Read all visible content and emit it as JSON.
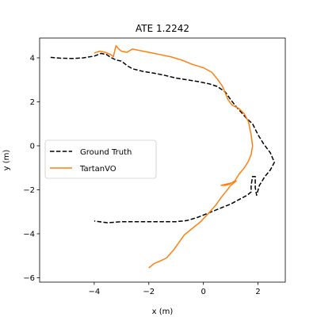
{
  "chart_data": {
    "type": "line",
    "title": "ATE 1.2242",
    "xlabel": "x (m)",
    "ylabel": "y (m)",
    "xlim": [
      -6.0,
      3.0
    ],
    "ylim": [
      -6.2,
      4.9
    ],
    "xticks": [
      -4,
      -2,
      0,
      2
    ],
    "yticks": [
      -6,
      -4,
      -2,
      0,
      2,
      4
    ],
    "xtick_labels": [
      "−4",
      "−2",
      "0",
      "2"
    ],
    "ytick_labels": [
      "−6",
      "−4",
      "−2",
      "0",
      "2",
      "4"
    ],
    "grid": false,
    "legend_position": "center-left",
    "series": [
      {
        "name": "Ground Truth",
        "style": "dashed",
        "color": "#000000",
        "points": [
          [
            -5.6,
            4.02
          ],
          [
            -5.2,
            3.98
          ],
          [
            -4.8,
            3.97
          ],
          [
            -4.4,
            4.0
          ],
          [
            -4.0,
            4.08
          ],
          [
            -3.75,
            4.2
          ],
          [
            -3.55,
            4.15
          ],
          [
            -3.4,
            4.02
          ],
          [
            -3.2,
            3.9
          ],
          [
            -3.0,
            3.85
          ],
          [
            -2.8,
            3.65
          ],
          [
            -2.6,
            3.5
          ],
          [
            -2.2,
            3.38
          ],
          [
            -1.8,
            3.3
          ],
          [
            -1.4,
            3.2
          ],
          [
            -1.0,
            3.08
          ],
          [
            -0.6,
            3.0
          ],
          [
            -0.2,
            2.92
          ],
          [
            0.2,
            2.82
          ],
          [
            0.5,
            2.7
          ],
          [
            0.8,
            2.45
          ],
          [
            1.0,
            2.1
          ],
          [
            1.2,
            1.78
          ],
          [
            1.4,
            1.5
          ],
          [
            1.6,
            1.22
          ],
          [
            1.8,
            1.0
          ],
          [
            2.0,
            0.5
          ],
          [
            2.2,
            0.1
          ],
          [
            2.45,
            -0.32
          ],
          [
            2.6,
            -0.75
          ],
          [
            2.45,
            -1.1
          ],
          [
            2.25,
            -1.4
          ],
          [
            2.05,
            -1.8
          ],
          [
            1.95,
            -2.25
          ],
          [
            1.9,
            -1.9
          ],
          [
            1.9,
            -1.4
          ],
          [
            1.8,
            -1.4
          ],
          [
            1.75,
            -1.8
          ],
          [
            1.75,
            -2.1
          ],
          [
            1.6,
            -2.25
          ],
          [
            1.3,
            -2.45
          ],
          [
            1.0,
            -2.65
          ],
          [
            0.6,
            -2.85
          ],
          [
            0.2,
            -3.05
          ],
          [
            -0.2,
            -3.25
          ],
          [
            -0.6,
            -3.4
          ],
          [
            -1.0,
            -3.45
          ],
          [
            -1.5,
            -3.45
          ],
          [
            -2.0,
            -3.45
          ],
          [
            -2.5,
            -3.45
          ],
          [
            -3.0,
            -3.45
          ],
          [
            -3.5,
            -3.5
          ],
          [
            -4.0,
            -3.42
          ]
        ]
      },
      {
        "name": "TartanVO",
        "style": "solid",
        "color": "#ff7f0e",
        "points": [
          [
            -4.0,
            4.22
          ],
          [
            -3.8,
            4.3
          ],
          [
            -3.6,
            4.25
          ],
          [
            -3.4,
            4.15
          ],
          [
            -3.3,
            4.05
          ],
          [
            -3.25,
            4.3
          ],
          [
            -3.2,
            4.55
          ],
          [
            -3.1,
            4.4
          ],
          [
            -3.0,
            4.3
          ],
          [
            -2.8,
            4.25
          ],
          [
            -2.6,
            4.4
          ],
          [
            -2.4,
            4.35
          ],
          [
            -2.0,
            4.25
          ],
          [
            -1.6,
            4.15
          ],
          [
            -1.2,
            4.05
          ],
          [
            -0.8,
            3.9
          ],
          [
            -0.4,
            3.7
          ],
          [
            0.0,
            3.55
          ],
          [
            0.3,
            3.35
          ],
          [
            0.5,
            3.05
          ],
          [
            0.7,
            2.7
          ],
          [
            0.8,
            2.4
          ],
          [
            0.9,
            2.1
          ],
          [
            1.05,
            1.85
          ],
          [
            1.3,
            1.7
          ],
          [
            1.5,
            1.45
          ],
          [
            1.65,
            1.1
          ],
          [
            1.75,
            0.5
          ],
          [
            1.8,
            0.0
          ],
          [
            1.75,
            -0.4
          ],
          [
            1.65,
            -0.7
          ],
          [
            1.5,
            -1.0
          ],
          [
            1.3,
            -1.3
          ],
          [
            1.15,
            -1.6
          ],
          [
            0.95,
            -1.75
          ],
          [
            0.8,
            -1.8
          ],
          [
            0.65,
            -1.8
          ],
          [
            1.0,
            -1.7
          ],
          [
            1.2,
            -1.6
          ],
          [
            1.0,
            -1.8
          ],
          [
            0.85,
            -2.05
          ],
          [
            0.65,
            -2.35
          ],
          [
            0.45,
            -2.7
          ],
          [
            0.2,
            -3.05
          ],
          [
            -0.1,
            -3.45
          ],
          [
            -0.4,
            -3.75
          ],
          [
            -0.7,
            -4.05
          ],
          [
            -0.9,
            -4.4
          ],
          [
            -1.1,
            -4.75
          ],
          [
            -1.35,
            -5.1
          ],
          [
            -1.6,
            -5.25
          ],
          [
            -1.8,
            -5.35
          ],
          [
            -2.0,
            -5.55
          ]
        ]
      }
    ]
  }
}
